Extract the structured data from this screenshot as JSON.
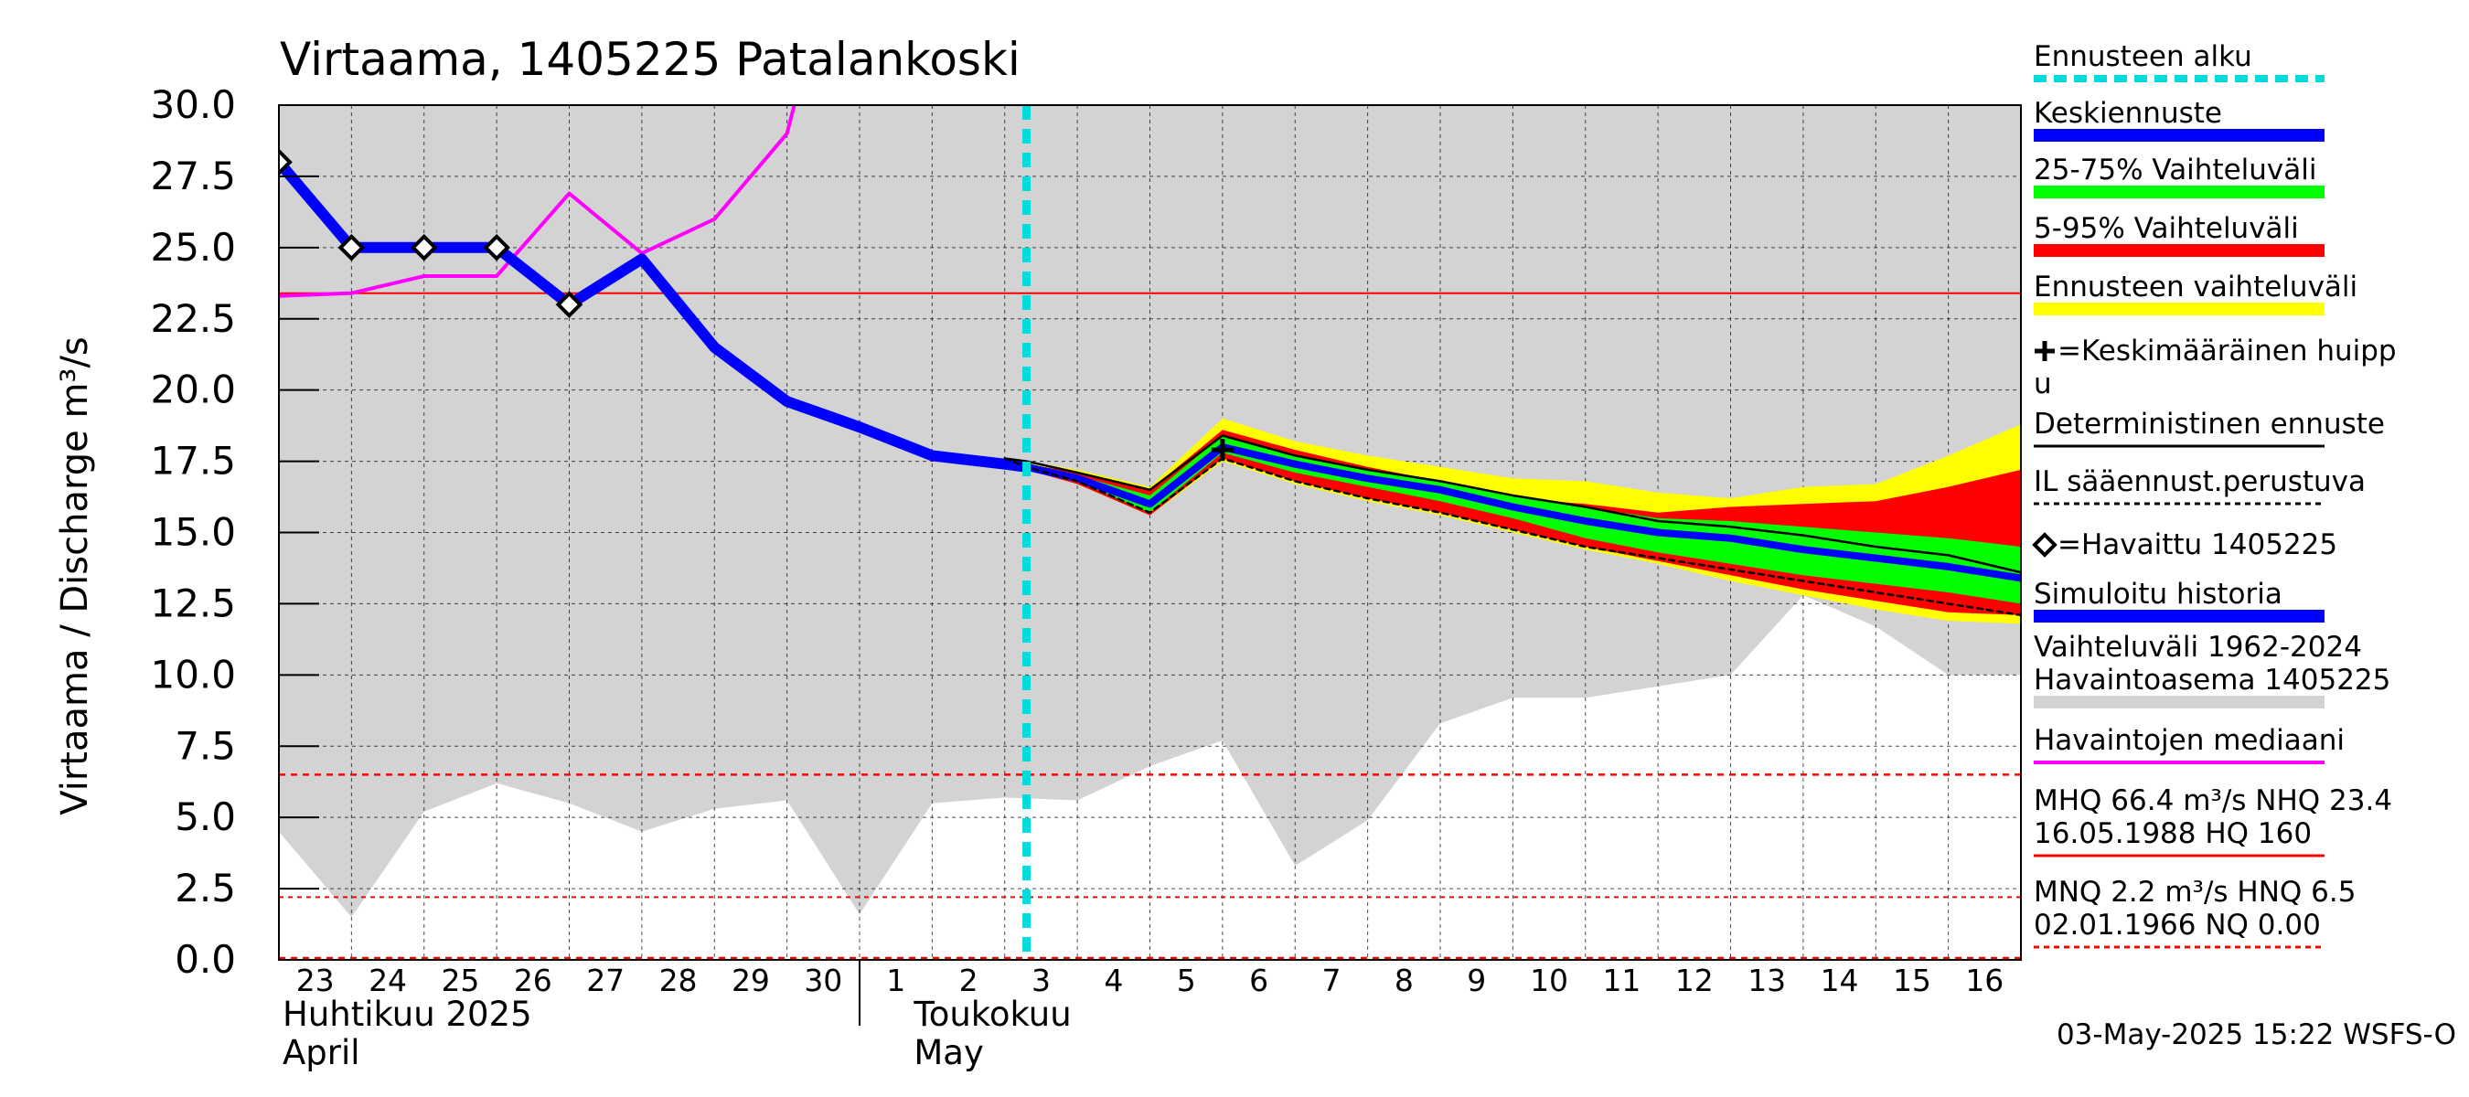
{
  "chart_data": {
    "type": "area",
    "title": "Virtaama, 1405225 Patalankoski",
    "ylabel": "Virtaama / Discharge   m³/s",
    "ylim": [
      0,
      30
    ],
    "yticks": [
      "0.0",
      "2.5",
      "5.0",
      "7.5",
      "10.0",
      "12.5",
      "15.0",
      "17.5",
      "20.0",
      "22.5",
      "25.0",
      "27.5",
      "30.0"
    ],
    "x_day_labels": [
      "23",
      "24",
      "25",
      "26",
      "27",
      "28",
      "29",
      "30",
      "1",
      "2",
      "3",
      "4",
      "5",
      "6",
      "7",
      "8",
      "9",
      "10",
      "11",
      "12",
      "13",
      "14",
      "15",
      "16"
    ],
    "month_labels": [
      {
        "line1": "Huhtikuu  2025",
        "line2": "April"
      },
      {
        "line1": "Toukokuu",
        "line2": "May"
      }
    ],
    "forecast_start_day": 10.3,
    "reference_lines": {
      "mhq_line": 23.4,
      "nq_upper": 6.5,
      "nq_lower": 2.2
    },
    "series": [
      {
        "name": "Vaihteluväli 1962-2024 Havaintoasema 1405225",
        "kind": "band",
        "x": [
          0,
          1,
          2,
          3,
          4,
          5,
          6,
          7,
          8,
          9,
          10,
          11,
          12,
          13,
          14,
          15,
          16,
          17,
          18,
          19,
          20,
          21,
          22,
          23,
          24
        ],
        "low": [
          4.5,
          1.5,
          5.2,
          6.2,
          5.5,
          4.5,
          5.3,
          5.6,
          1.6,
          5.5,
          5.7,
          5.6,
          6.8,
          7.7,
          3.3,
          4.9,
          8.3,
          9.2,
          9.2,
          9.6,
          10.0,
          12.8,
          11.7,
          10.0,
          10.0
        ],
        "high": [
          30,
          30,
          30,
          30,
          30,
          30,
          30,
          30,
          30,
          30,
          30,
          30,
          30,
          30,
          30,
          30,
          30,
          30,
          30,
          30,
          30,
          30,
          30,
          30,
          30
        ]
      },
      {
        "name": "Ennusteen vaihteluväli",
        "kind": "band",
        "x": [
          10,
          10.3,
          11,
          12,
          13,
          14,
          15,
          16,
          17,
          18,
          19,
          20,
          21,
          22,
          23,
          24
        ],
        "low": [
          17.6,
          17.2,
          16.7,
          15.6,
          17.5,
          16.7,
          16.1,
          15.6,
          15.0,
          14.4,
          13.9,
          13.3,
          12.8,
          12.3,
          11.9,
          11.8
        ],
        "high": [
          17.6,
          17.5,
          17.2,
          16.6,
          19.0,
          18.2,
          17.7,
          17.3,
          16.9,
          16.8,
          16.4,
          16.2,
          16.6,
          16.7,
          17.7,
          18.8
        ]
      },
      {
        "name": "5-95% Vaihteluväli",
        "kind": "band",
        "x": [
          10,
          10.3,
          11,
          12,
          13,
          14,
          15,
          16,
          17,
          18,
          19,
          20,
          21,
          22,
          23,
          24
        ],
        "low": [
          17.6,
          17.2,
          16.7,
          15.6,
          17.6,
          16.8,
          16.2,
          15.7,
          15.1,
          14.5,
          14.0,
          13.5,
          13.0,
          12.6,
          12.2,
          12.1
        ],
        "high": [
          17.6,
          17.4,
          17.1,
          16.5,
          18.6,
          17.9,
          17.3,
          16.8,
          16.2,
          16.0,
          15.7,
          15.9,
          16.0,
          16.1,
          16.6,
          17.2
        ]
      },
      {
        "name": "25-75% Vaihteluväli",
        "kind": "band",
        "x": [
          10,
          10.3,
          11,
          12,
          13,
          14,
          15,
          16,
          17,
          18,
          19,
          20,
          21,
          22,
          23,
          24
        ],
        "low": [
          17.6,
          17.3,
          16.8,
          15.7,
          17.8,
          17.1,
          16.6,
          16.1,
          15.5,
          14.8,
          14.3,
          13.9,
          13.5,
          13.2,
          12.9,
          12.5
        ],
        "high": [
          17.6,
          17.4,
          17.0,
          16.3,
          18.4,
          17.7,
          17.2,
          16.8,
          16.3,
          15.9,
          15.5,
          15.4,
          15.2,
          15.0,
          14.8,
          14.5
        ]
      },
      {
        "name": "Havaintojen mediaani",
        "kind": "line",
        "x": [
          0,
          1,
          2,
          3,
          4,
          5,
          6,
          7,
          7.1
        ],
        "y": [
          23.3,
          23.4,
          24.0,
          24.0,
          26.9,
          24.8,
          26.0,
          29.0,
          30.0
        ]
      },
      {
        "name": "Simuloitu historia",
        "kind": "line",
        "x": [
          0,
          1,
          2,
          3,
          4,
          5,
          6,
          7,
          8,
          9,
          10,
          10.3
        ],
        "y": [
          28.0,
          25.0,
          25.0,
          25.0,
          23.0,
          24.6,
          21.5,
          19.6,
          18.7,
          17.7,
          17.4,
          17.3
        ]
      },
      {
        "name": "Keskiennuste",
        "kind": "line",
        "x": [
          10.3,
          11,
          12,
          13,
          14,
          15,
          16,
          17,
          18,
          19,
          20,
          21,
          22,
          23,
          24
        ],
        "y": [
          17.3,
          16.9,
          16.0,
          18.0,
          17.4,
          16.9,
          16.5,
          15.9,
          15.4,
          15.0,
          14.8,
          14.4,
          14.1,
          13.8,
          13.4
        ]
      },
      {
        "name": "Deterministinen ennuste",
        "kind": "line",
        "x": [
          10,
          10.3,
          11,
          12,
          13,
          14,
          15,
          16,
          17,
          18,
          19,
          20,
          21,
          22,
          23,
          24
        ],
        "y": [
          17.6,
          17.5,
          17.1,
          16.5,
          18.4,
          17.7,
          17.2,
          16.8,
          16.3,
          15.9,
          15.4,
          15.2,
          14.9,
          14.5,
          14.2,
          13.6
        ]
      },
      {
        "name": "IL sääennust.perustuva",
        "kind": "line",
        "x": [
          10,
          10.3,
          11,
          12,
          13,
          14,
          15,
          16,
          17,
          18,
          19,
          20,
          21,
          22,
          23,
          24
        ],
        "y": [
          17.6,
          17.3,
          16.8,
          15.7,
          17.6,
          16.8,
          16.2,
          15.7,
          15.1,
          14.5,
          14.1,
          13.7,
          13.3,
          12.9,
          12.5,
          12.1
        ]
      },
      {
        "name": "Havaittu 1405225",
        "kind": "points",
        "x": [
          0,
          1,
          2,
          3,
          4
        ],
        "y": [
          28.0,
          25.0,
          25.0,
          25.0,
          23.0
        ]
      },
      {
        "name": "Keskimääräinen huippu",
        "kind": "points",
        "x": [
          13
        ],
        "y": [
          17.9
        ]
      }
    ]
  },
  "legend": [
    {
      "label": "Ennusteen alku",
      "color": "#00dcdc",
      "style": "dashed-thick"
    },
    {
      "label": "Keskiennuste",
      "color": "#0000ff",
      "style": "thick"
    },
    {
      "label": "25-75% Vaihteluväli",
      "color": "#00ff00",
      "style": "thick"
    },
    {
      "label": "5-95% Vaihteluväli",
      "color": "#ff0000",
      "style": "thick"
    },
    {
      "label": "Ennusteen vaihteluväli",
      "color": "#ffff00",
      "style": "thick"
    },
    {
      "label": "=Keskimääräinen huipp",
      "label2": "u",
      "color": "#000000",
      "style": "none"
    },
    {
      "label": "Deterministinen ennuste",
      "color": "#000000",
      "style": "thin"
    },
    {
      "label": "IL sääennust.perustuva",
      "color": "#000000",
      "style": "dashed-thin"
    },
    {
      "label": "=Havaittu 1405225",
      "color": "#000000",
      "style": "none"
    },
    {
      "label": "Simuloitu historia",
      "color": "#0000ff",
      "style": "thick"
    },
    {
      "label": "Vaihteluväli 1962-2024",
      "label2": " Havaintoasema 1405225",
      "color": "#d3d3d3",
      "style": "thick"
    },
    {
      "label": "Havaintojen mediaani",
      "color": "#ff00ff",
      "style": "medium"
    },
    {
      "label": "MHQ 66.4 m³/s NHQ 23.4",
      "label2": "16.05.1988 HQ  160",
      "color": "#ff0000",
      "style": "thin"
    },
    {
      "label": "MNQ  2.2 m³/s HNQ  6.5",
      "label2": "02.01.1966 NQ 0.00",
      "color": "#ff0000",
      "style": "dashed-thin"
    }
  ],
  "footer": "03-May-2025 15:22 WSFS-O",
  "colors": {
    "grey_band": "#d3d3d3",
    "yellow": "#ffff00",
    "red": "#ff0000",
    "green": "#00ff00",
    "blue": "#0000ff",
    "magenta": "#ff00ff",
    "cyan": "#00dcdc",
    "black": "#000000"
  }
}
